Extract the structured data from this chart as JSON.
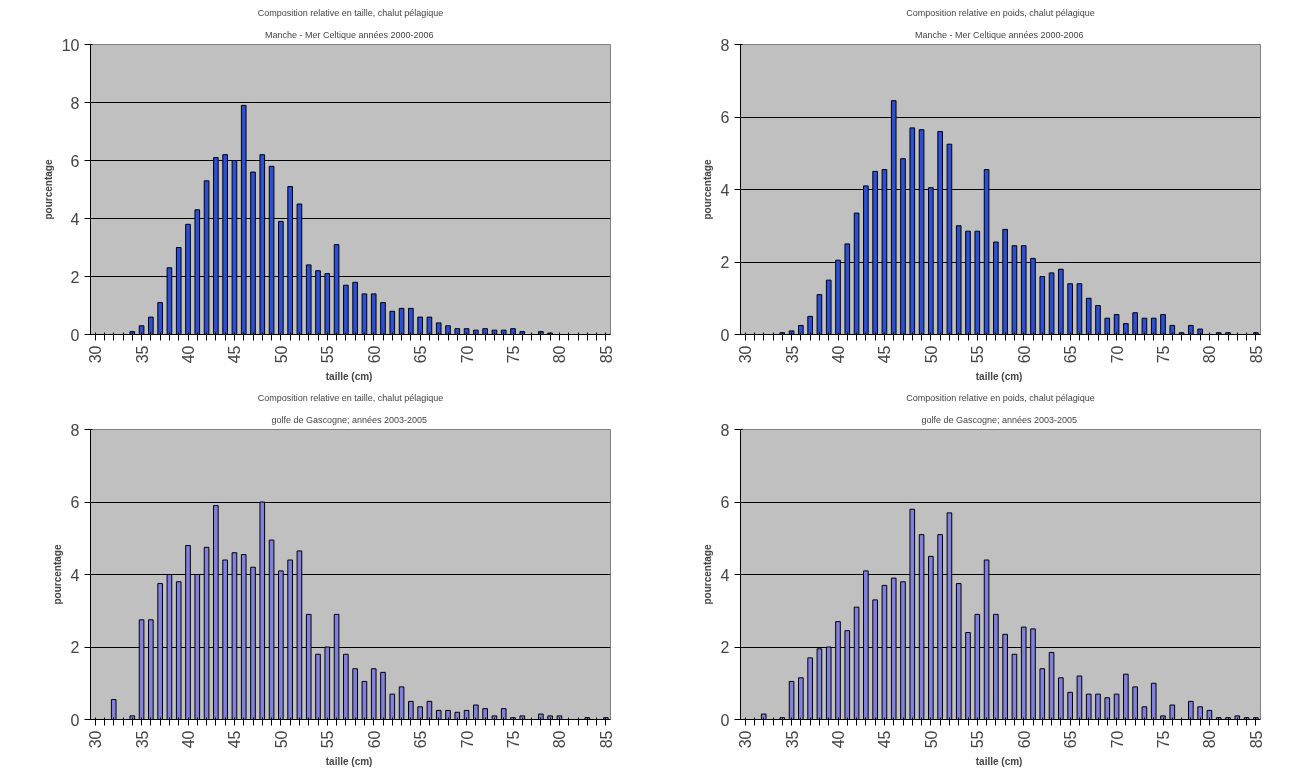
{
  "chart_data": [
    {
      "type": "bar",
      "title": "Composition relative en taille, chalut pélagique",
      "subtitle": "Manche - Mer Celtique  années 2000-2006",
      "xlabel": "taille  (cm)",
      "ylabel": "pourcentage",
      "categories": [
        "30",
        null,
        null,
        null,
        null,
        "35",
        null,
        null,
        null,
        null,
        "40",
        null,
        null,
        null,
        null,
        "45",
        null,
        null,
        null,
        null,
        "50",
        null,
        null,
        null,
        null,
        "55",
        null,
        null,
        null,
        null,
        "60",
        null,
        null,
        null,
        null,
        "65",
        null,
        null,
        null,
        null,
        "70",
        null,
        null,
        null,
        null,
        "75",
        null,
        null,
        null,
        null,
        "80",
        null,
        null,
        null,
        null,
        "85"
      ],
      "color": "#2b4fd6",
      "values": [
        0,
        0,
        0,
        0,
        0.1,
        0.3,
        0.6,
        1.1,
        2.3,
        3.0,
        3.8,
        4.3,
        5.3,
        6.1,
        6.2,
        6.0,
        7.9,
        5.6,
        6.2,
        5.8,
        3.9,
        5.1,
        4.5,
        2.4,
        2.2,
        2.1,
        3.1,
        1.7,
        1.8,
        1.4,
        1.4,
        1.1,
        0.8,
        0.9,
        0.9,
        0.6,
        0.6,
        0.4,
        0.3,
        0.2,
        0.2,
        0.15,
        0.2,
        0.15,
        0.15,
        0.2,
        0.1,
        0,
        0.1,
        0.05,
        0,
        0,
        0,
        0,
        0,
        0
      ],
      "ylim": [
        0,
        10
      ],
      "yticks": [
        0,
        2,
        4,
        6,
        8,
        10
      ],
      "grid": "y",
      "legend": false
    },
    {
      "type": "bar",
      "title": "Composition relative en poids, chalut pélagique",
      "subtitle": "Manche - Mer Celtique  années 2000-2006",
      "xlabel": "taille  (cm)",
      "ylabel": "pourcentage",
      "categories": [
        "30",
        null,
        null,
        null,
        null,
        "35",
        null,
        null,
        null,
        null,
        "40",
        null,
        null,
        null,
        null,
        "45",
        null,
        null,
        null,
        null,
        "50",
        null,
        null,
        null,
        null,
        "55",
        null,
        null,
        null,
        null,
        "60",
        null,
        null,
        null,
        null,
        "65",
        null,
        null,
        null,
        null,
        "70",
        null,
        null,
        null,
        null,
        "75",
        null,
        null,
        null,
        null,
        "80",
        null,
        null,
        null,
        null,
        "85"
      ],
      "color": "#2b4fd6",
      "values": [
        0,
        0,
        0,
        0,
        0.05,
        0.1,
        0.25,
        0.5,
        1.1,
        1.5,
        2.05,
        2.5,
        3.35,
        4.1,
        4.5,
        4.55,
        6.45,
        4.85,
        5.7,
        5.65,
        4.05,
        5.6,
        5.25,
        3.0,
        2.85,
        2.85,
        4.55,
        2.55,
        2.9,
        2.45,
        2.45,
        2.1,
        1.6,
        1.7,
        1.8,
        1.4,
        1.4,
        1.0,
        0.8,
        0.45,
        0.55,
        0.3,
        0.6,
        0.45,
        0.45,
        0.55,
        0.25,
        0.05,
        0.25,
        0.15,
        0,
        0.05,
        0.05,
        0,
        0,
        0.05
      ],
      "ylim": [
        0,
        8
      ],
      "yticks": [
        0,
        2,
        4,
        6,
        8
      ],
      "grid": "y",
      "legend": false
    },
    {
      "type": "bar",
      "title": "Composition relative en taille, chalut pélagique",
      "subtitle": "golfe de Gascogne;  années 2003-2005",
      "xlabel": "taille  (cm)",
      "ylabel": "pourcentage",
      "categories": [
        "30",
        null,
        null,
        null,
        null,
        "35",
        null,
        null,
        null,
        null,
        "40",
        null,
        null,
        null,
        null,
        "45",
        null,
        null,
        null,
        null,
        "50",
        null,
        null,
        null,
        null,
        "55",
        null,
        null,
        null,
        null,
        "60",
        null,
        null,
        null,
        null,
        "65",
        null,
        null,
        null,
        null,
        "70",
        null,
        null,
        null,
        null,
        "75",
        null,
        null,
        null,
        null,
        "80",
        null,
        null,
        null,
        null,
        "85"
      ],
      "color": "#8080e0",
      "values": [
        0,
        0,
        0.55,
        0,
        0.1,
        2.75,
        2.75,
        3.75,
        4.0,
        3.8,
        4.8,
        4.0,
        4.75,
        5.9,
        4.4,
        4.6,
        4.55,
        4.2,
        6.0,
        4.95,
        4.1,
        4.4,
        4.65,
        2.9,
        1.8,
        2.0,
        2.9,
        1.8,
        1.4,
        1.05,
        1.4,
        1.3,
        0.7,
        0.9,
        0.5,
        0.35,
        0.5,
        0.25,
        0.25,
        0.2,
        0.25,
        0.4,
        0.3,
        0.1,
        0.3,
        0.05,
        0.1,
        0,
        0.15,
        0.1,
        0.1,
        0,
        0,
        0.05,
        0,
        0.05
      ],
      "ylim": [
        0,
        8
      ],
      "yticks": [
        0,
        2,
        4,
        6,
        8
      ],
      "grid": "y",
      "legend": false
    },
    {
      "type": "bar",
      "title": "Composition relative en poids, chalut pélagique",
      "subtitle": "golfe de Gascogne;  années 2003-2005",
      "xlabel": "taille  (cm)",
      "ylabel": "pourcentage",
      "categories": [
        "30",
        null,
        null,
        null,
        null,
        "35",
        null,
        null,
        null,
        null,
        "40",
        null,
        null,
        null,
        null,
        "45",
        null,
        null,
        null,
        null,
        "50",
        null,
        null,
        null,
        null,
        "55",
        null,
        null,
        null,
        null,
        "60",
        null,
        null,
        null,
        null,
        "65",
        null,
        null,
        null,
        null,
        "70",
        null,
        null,
        null,
        null,
        "75",
        null,
        null,
        null,
        null,
        "80",
        null,
        null,
        null,
        null,
        "85"
      ],
      "color": "#8080e0",
      "values": [
        0,
        0,
        0.15,
        0,
        0.05,
        1.05,
        1.15,
        1.7,
        1.95,
        2.0,
        2.7,
        2.45,
        3.1,
        4.1,
        3.3,
        3.7,
        3.9,
        3.8,
        5.8,
        5.1,
        4.5,
        5.1,
        5.7,
        3.75,
        2.4,
        2.9,
        4.4,
        2.9,
        2.35,
        1.8,
        2.55,
        2.5,
        1.4,
        1.85,
        1.15,
        0.75,
        1.2,
        0.7,
        0.7,
        0.6,
        0.7,
        1.25,
        0.9,
        0.35,
        1.0,
        0.1,
        0.4,
        0,
        0.5,
        0.35,
        0.25,
        0.05,
        0.05,
        0.1,
        0.05,
        0.05
      ],
      "ylim": [
        0,
        8
      ],
      "yticks": [
        0,
        2,
        4,
        6,
        8
      ],
      "grid": "y",
      "legend": false
    }
  ]
}
